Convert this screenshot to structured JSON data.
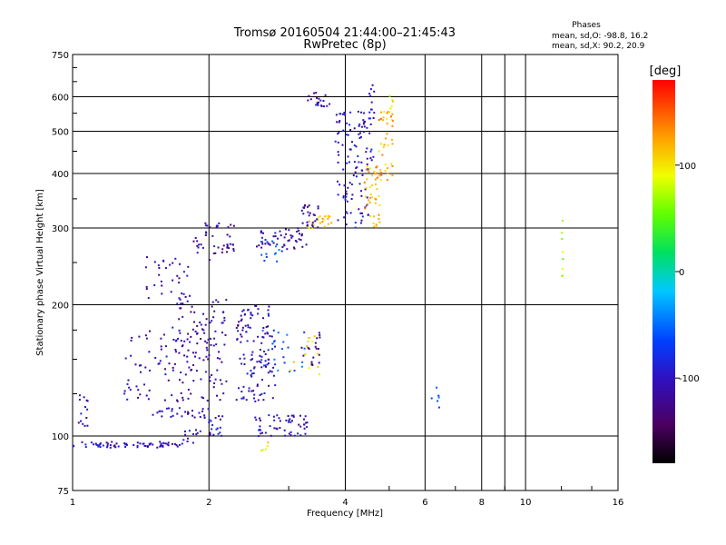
{
  "chart_data": {
    "type": "scatter",
    "title": "Tromsø 20160504 21:44:00–21:45:43",
    "subtitle": "RwPretec (8p)",
    "xlabel": "Frequency [MHz]",
    "ylabel": "Stationary phase Virtual Height [km]",
    "xscale": "log",
    "yscale": "log",
    "xlim": [
      1,
      16
    ],
    "ylim": [
      75,
      750
    ],
    "x_ticks": [
      1,
      2,
      4,
      6,
      8,
      10,
      16
    ],
    "y_ticks": [
      75,
      100,
      200,
      300,
      400,
      500,
      600,
      750
    ],
    "extra_vlines": [
      9
    ],
    "grid": true,
    "phases": {
      "title": "Phases",
      "line_o": "mean, sd,O:  -98.8, 16.2",
      "line_x": "mean, sd,X:  90.2, 20.9"
    },
    "colorbar": {
      "label": "[deg]",
      "range": [
        -180,
        180
      ],
      "ticks": [
        100,
        0,
        -100
      ],
      "colormap": "rainbow (black-purple-blue-cyan-green-yellow-orange-red)"
    },
    "clusters": [
      {
        "x": [
          1.0,
          1.75
        ],
        "y": [
          94,
          97
        ],
        "phase": -105,
        "n": 70
      },
      {
        "x": [
          1.02,
          1.08
        ],
        "y": [
          105,
          125
        ],
        "phase": -110,
        "n": 14
      },
      {
        "x": [
          1.75,
          1.95
        ],
        "y": [
          96,
          104
        ],
        "phase": -100,
        "n": 12
      },
      {
        "x": [
          1.3,
          1.7
        ],
        "y": [
          120,
          180
        ],
        "phase": -110,
        "n": 55
      },
      {
        "x": [
          1.45,
          1.8
        ],
        "y": [
          200,
          260
        ],
        "phase": -110,
        "n": 35
      },
      {
        "x": [
          1.5,
          2.0
        ],
        "y": [
          110,
          116
        ],
        "phase": -105,
        "n": 30
      },
      {
        "x": [
          1.7,
          2.2
        ],
        "y": [
          120,
          210
        ],
        "phase": -115,
        "n": 120
      },
      {
        "x": [
          1.85,
          2.3
        ],
        "y": [
          250,
          310
        ],
        "phase": -110,
        "n": 45
      },
      {
        "x": [
          2.0,
          2.15
        ],
        "y": [
          100,
          115
        ],
        "phase": -100,
        "n": 18
      },
      {
        "x": [
          2.3,
          2.8
        ],
        "y": [
          120,
          200
        ],
        "phase": -105,
        "n": 120
      },
      {
        "x": [
          2.5,
          3.3
        ],
        "y": [
          100,
          112
        ],
        "phase": -100,
        "n": 55
      },
      {
        "x": [
          2.6,
          3.3
        ],
        "y": [
          140,
          175
        ],
        "phase": -60,
        "n": 25
      },
      {
        "x": [
          3.0,
          3.6
        ],
        "y": [
          138,
          170
        ],
        "phase": 100,
        "n": 14
      },
      {
        "x": [
          3.2,
          3.55
        ],
        "y": [
          145,
          175
        ],
        "phase": -130,
        "n": 18
      },
      {
        "x": [
          2.55,
          3.3
        ],
        "y": [
          268,
          300
        ],
        "phase": -110,
        "n": 50
      },
      {
        "x": [
          2.6,
          2.9
        ],
        "y": [
          250,
          280
        ],
        "phase": -60,
        "n": 14
      },
      {
        "x": [
          3.3,
          3.8
        ],
        "y": [
          300,
          320
        ],
        "phase": 110,
        "n": 24
      },
      {
        "x": [
          3.2,
          3.5
        ],
        "y": [
          300,
          340
        ],
        "phase": -120,
        "n": 25
      },
      {
        "x": [
          3.8,
          4.5
        ],
        "y": [
          300,
          560
        ],
        "phase": -100,
        "n": 110
      },
      {
        "x": [
          4.4,
          4.8
        ],
        "y": [
          300,
          420
        ],
        "phase": 120,
        "n": 45
      },
      {
        "x": [
          4.7,
          5.1
        ],
        "y": [
          380,
          560
        ],
        "phase": 120,
        "n": 40
      },
      {
        "x": [
          3.3,
          3.7
        ],
        "y": [
          570,
          615
        ],
        "phase": -110,
        "n": 20
      },
      {
        "x": [
          4.5,
          4.65
        ],
        "y": [
          420,
          640
        ],
        "phase": -105,
        "n": 20
      },
      {
        "x": [
          5.0,
          5.1
        ],
        "y": [
          550,
          630
        ],
        "phase": 95,
        "n": 6
      },
      {
        "x": [
          6.2,
          6.5
        ],
        "y": [
          115,
          130
        ],
        "phase": -60,
        "n": 6
      },
      {
        "x": [
          12.0,
          12.1
        ],
        "y": [
          200,
          320
        ],
        "phase": 70,
        "n": 8
      },
      {
        "x": [
          2.6,
          2.75
        ],
        "y": [
          92,
          97
        ],
        "phase": 95,
        "n": 5
      }
    ]
  }
}
